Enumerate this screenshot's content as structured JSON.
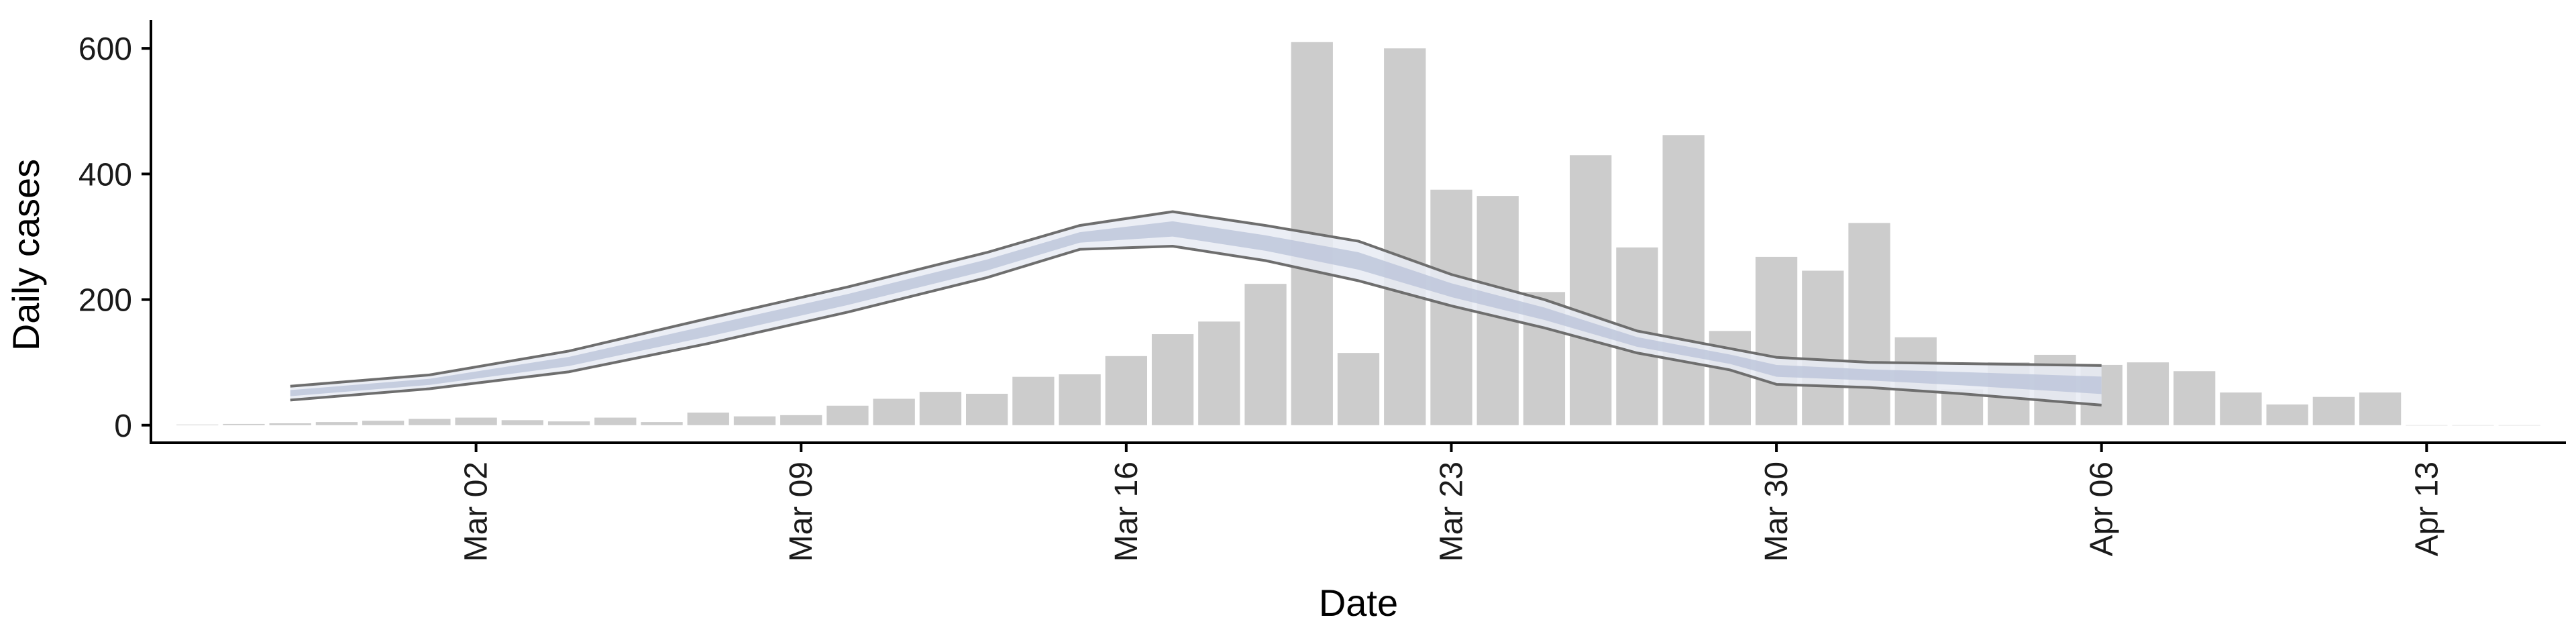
{
  "chart_data": {
    "type": "bar",
    "title": "",
    "xlabel": "Date",
    "ylabel": "Daily cases",
    "ylim": [
      -28,
      645
    ],
    "y_ticks": [
      0,
      200,
      400,
      600
    ],
    "x_domain": [
      "2020-02-24",
      "2020-04-16"
    ],
    "x_ticks": [
      {
        "date": "2020-03-02",
        "label": "Mar 02"
      },
      {
        "date": "2020-03-09",
        "label": "Mar 09"
      },
      {
        "date": "2020-03-16",
        "label": "Mar 16"
      },
      {
        "date": "2020-03-23",
        "label": "Mar 23"
      },
      {
        "date": "2020-03-30",
        "label": "Mar 30"
      },
      {
        "date": "2020-04-06",
        "label": "Apr 06"
      },
      {
        "date": "2020-04-13",
        "label": "Apr 13"
      }
    ],
    "grid": false,
    "legend": "none",
    "colors": {
      "bars": "#cccccc",
      "ribbon": "#e8ebf3",
      "band_inner": "#bcc4da",
      "bound_lines": "#6e6e6e",
      "axis": "#000000"
    },
    "observed_cases": {
      "dates": [
        "2020-02-25",
        "2020-02-26",
        "2020-02-27",
        "2020-02-28",
        "2020-02-29",
        "2020-03-01",
        "2020-03-02",
        "2020-03-03",
        "2020-03-04",
        "2020-03-05",
        "2020-03-06",
        "2020-03-07",
        "2020-03-08",
        "2020-03-09",
        "2020-03-10",
        "2020-03-11",
        "2020-03-12",
        "2020-03-13",
        "2020-03-14",
        "2020-03-15",
        "2020-03-16",
        "2020-03-17",
        "2020-03-18",
        "2020-03-19",
        "2020-03-20",
        "2020-03-21",
        "2020-03-22",
        "2020-03-23",
        "2020-03-24",
        "2020-03-25",
        "2020-03-26",
        "2020-03-27",
        "2020-03-28",
        "2020-03-29",
        "2020-03-30",
        "2020-03-31",
        "2020-04-01",
        "2020-04-02",
        "2020-04-03",
        "2020-04-04",
        "2020-04-05",
        "2020-04-06",
        "2020-04-07",
        "2020-04-08",
        "2020-04-09",
        "2020-04-10",
        "2020-04-11",
        "2020-04-12",
        "2020-04-13",
        "2020-04-14",
        "2020-04-15"
      ],
      "values": [
        1,
        2,
        3,
        5,
        7,
        10,
        12,
        8,
        6,
        12,
        5,
        20,
        14,
        16,
        31,
        42,
        53,
        50,
        77,
        81,
        110,
        145,
        165,
        225,
        610,
        115,
        600,
        375,
        365,
        212,
        430,
        283,
        462,
        150,
        268,
        246,
        322,
        140,
        57,
        100,
        112,
        96,
        100,
        86,
        52,
        33,
        45,
        52,
        0,
        0,
        0
      ]
    },
    "estimate": {
      "dates": [
        "2020-02-27",
        "2020-03-01",
        "2020-03-04",
        "2020-03-07",
        "2020-03-10",
        "2020-03-13",
        "2020-03-15",
        "2020-03-17",
        "2020-03-19",
        "2020-03-21",
        "2020-03-23",
        "2020-03-25",
        "2020-03-27",
        "2020-03-29",
        "2020-03-30",
        "2020-04-01",
        "2020-04-03",
        "2020-04-06"
      ],
      "lower": [
        40,
        58,
        85,
        130,
        180,
        235,
        280,
        285,
        262,
        230,
        190,
        155,
        115,
        88,
        65,
        60,
        50,
        32
      ],
      "upper": [
        62,
        80,
        118,
        170,
        220,
        275,
        318,
        340,
        318,
        293,
        240,
        200,
        150,
        122,
        108,
        100,
        98,
        95
      ]
    }
  }
}
